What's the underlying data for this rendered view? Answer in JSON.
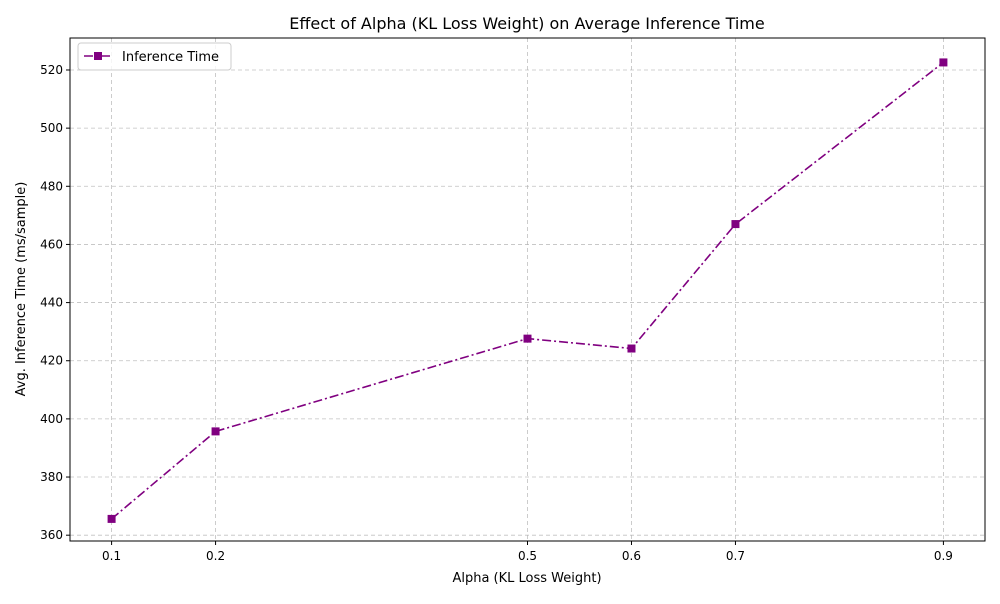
{
  "chart_data": {
    "type": "line",
    "title": "Effect of Alpha (KL Loss Weight) on Average Inference Time",
    "xlabel": "Alpha (KL Loss Weight)",
    "ylabel": "Avg. Inference Time (ms/sample)",
    "x": [
      0.1,
      0.2,
      0.5,
      0.6,
      0.7,
      0.9
    ],
    "x_tick_labels": [
      "0.1",
      "0.2",
      "0.5",
      "0.6",
      "0.7",
      "0.9"
    ],
    "y_ticks": [
      360,
      380,
      400,
      420,
      440,
      460,
      480,
      500,
      520
    ],
    "xlim": [
      0.06,
      0.94
    ],
    "ylim": [
      358,
      531
    ],
    "grid": true,
    "legend_position": "top-left",
    "series": [
      {
        "name": "Inference Time",
        "color": "#800080",
        "line_style": "dash-dot",
        "marker": "square",
        "values": [
          365.6,
          395.7,
          427.6,
          424.2,
          467.0,
          522.6
        ]
      }
    ]
  }
}
